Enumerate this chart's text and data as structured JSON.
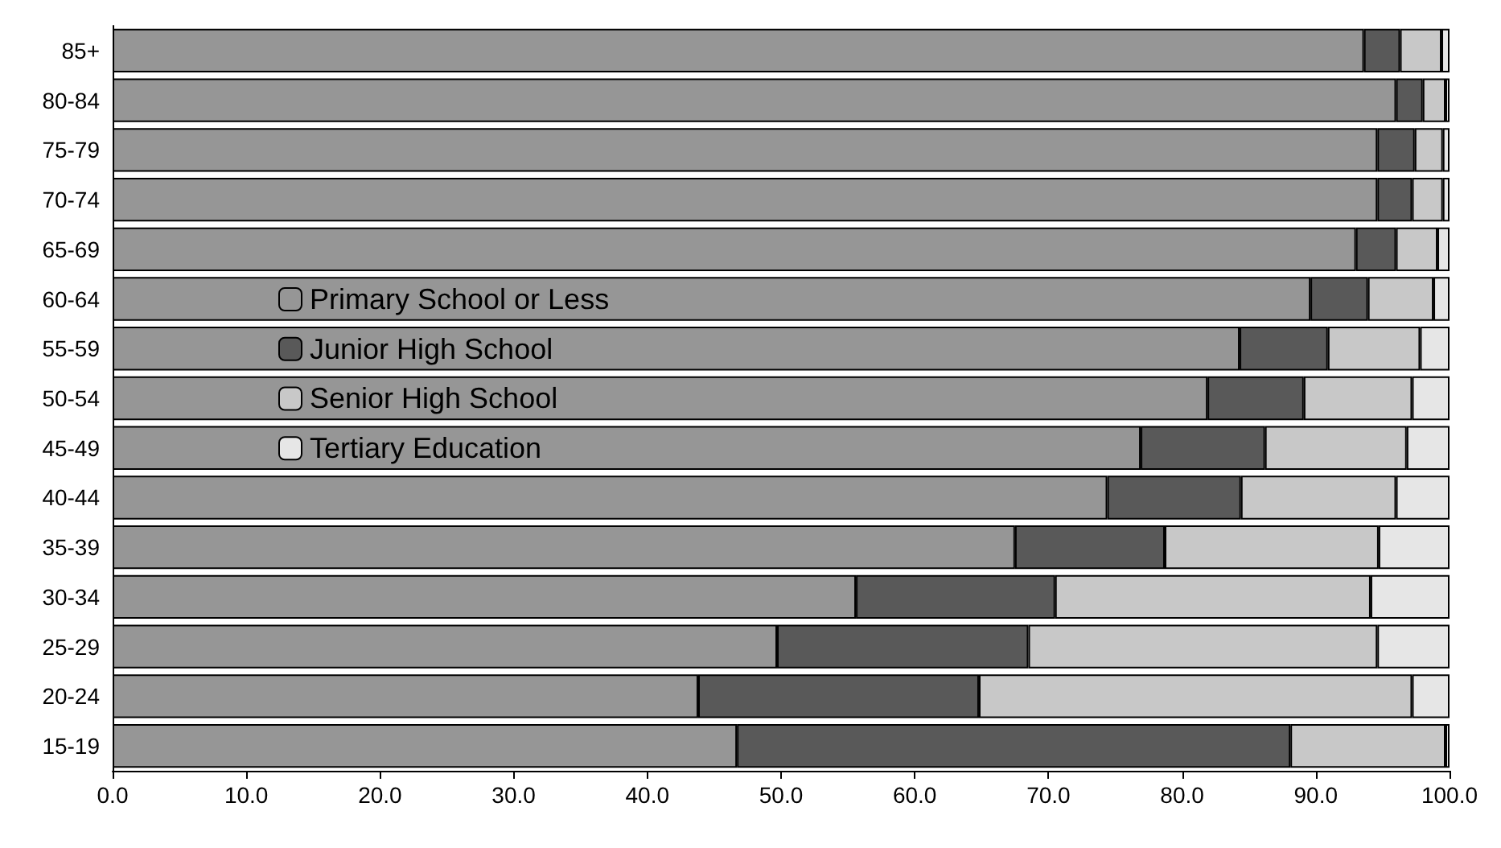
{
  "chart_data": {
    "type": "bar",
    "orientation": "horizontal",
    "stacked": true,
    "legend": "left",
    "grid": false,
    "categories": [
      "85+",
      "80-84",
      "75-79",
      "70-74",
      "65-69",
      "60-64",
      "55-59",
      "50-54",
      "45-49",
      "40-44",
      "35-39",
      "30-34",
      "25-29",
      "20-24",
      "15-19"
    ],
    "series": [
      {
        "name": "Primary School or Less",
        "color": "#969696",
        "values": [
          93.6,
          96.0,
          94.6,
          94.6,
          93.0,
          89.6,
          84.3,
          81.9,
          76.9,
          74.4,
          67.5,
          55.6,
          49.7,
          43.8,
          46.7
        ]
      },
      {
        "name": "Junior High School",
        "color": "#595959",
        "values": [
          2.7,
          2.0,
          2.8,
          2.6,
          3.0,
          4.3,
          6.6,
          7.2,
          9.3,
          10.0,
          11.2,
          14.9,
          18.8,
          21.0,
          41.4
        ]
      },
      {
        "name": "Senior High School",
        "color": "#c8c8c8",
        "values": [
          3.1,
          1.7,
          2.1,
          2.3,
          3.1,
          4.9,
          6.9,
          8.1,
          10.6,
          11.6,
          16.0,
          23.6,
          26.1,
          32.4,
          11.6
        ]
      },
      {
        "name": "Tertiary Education",
        "color": "#e6e6e6",
        "values": [
          0.6,
          0.3,
          0.5,
          0.5,
          0.9,
          1.2,
          2.2,
          2.8,
          3.2,
          4.0,
          5.3,
          5.9,
          5.4,
          2.8,
          0.3
        ]
      }
    ],
    "xlim": [
      0,
      100
    ],
    "xticks": [
      {
        "value": 0,
        "label": "0.0"
      },
      {
        "value": 10,
        "label": "10.0"
      },
      {
        "value": 20,
        "label": "20.0"
      },
      {
        "value": 30,
        "label": "30.0"
      },
      {
        "value": 40,
        "label": "40.0"
      },
      {
        "value": 50,
        "label": "50.0"
      },
      {
        "value": 60,
        "label": "60.0"
      },
      {
        "value": 70,
        "label": "70.0"
      },
      {
        "value": 80,
        "label": "80.0"
      },
      {
        "value": 90,
        "label": "90.0"
      },
      {
        "value": 100,
        "label": "100.0"
      }
    ]
  }
}
